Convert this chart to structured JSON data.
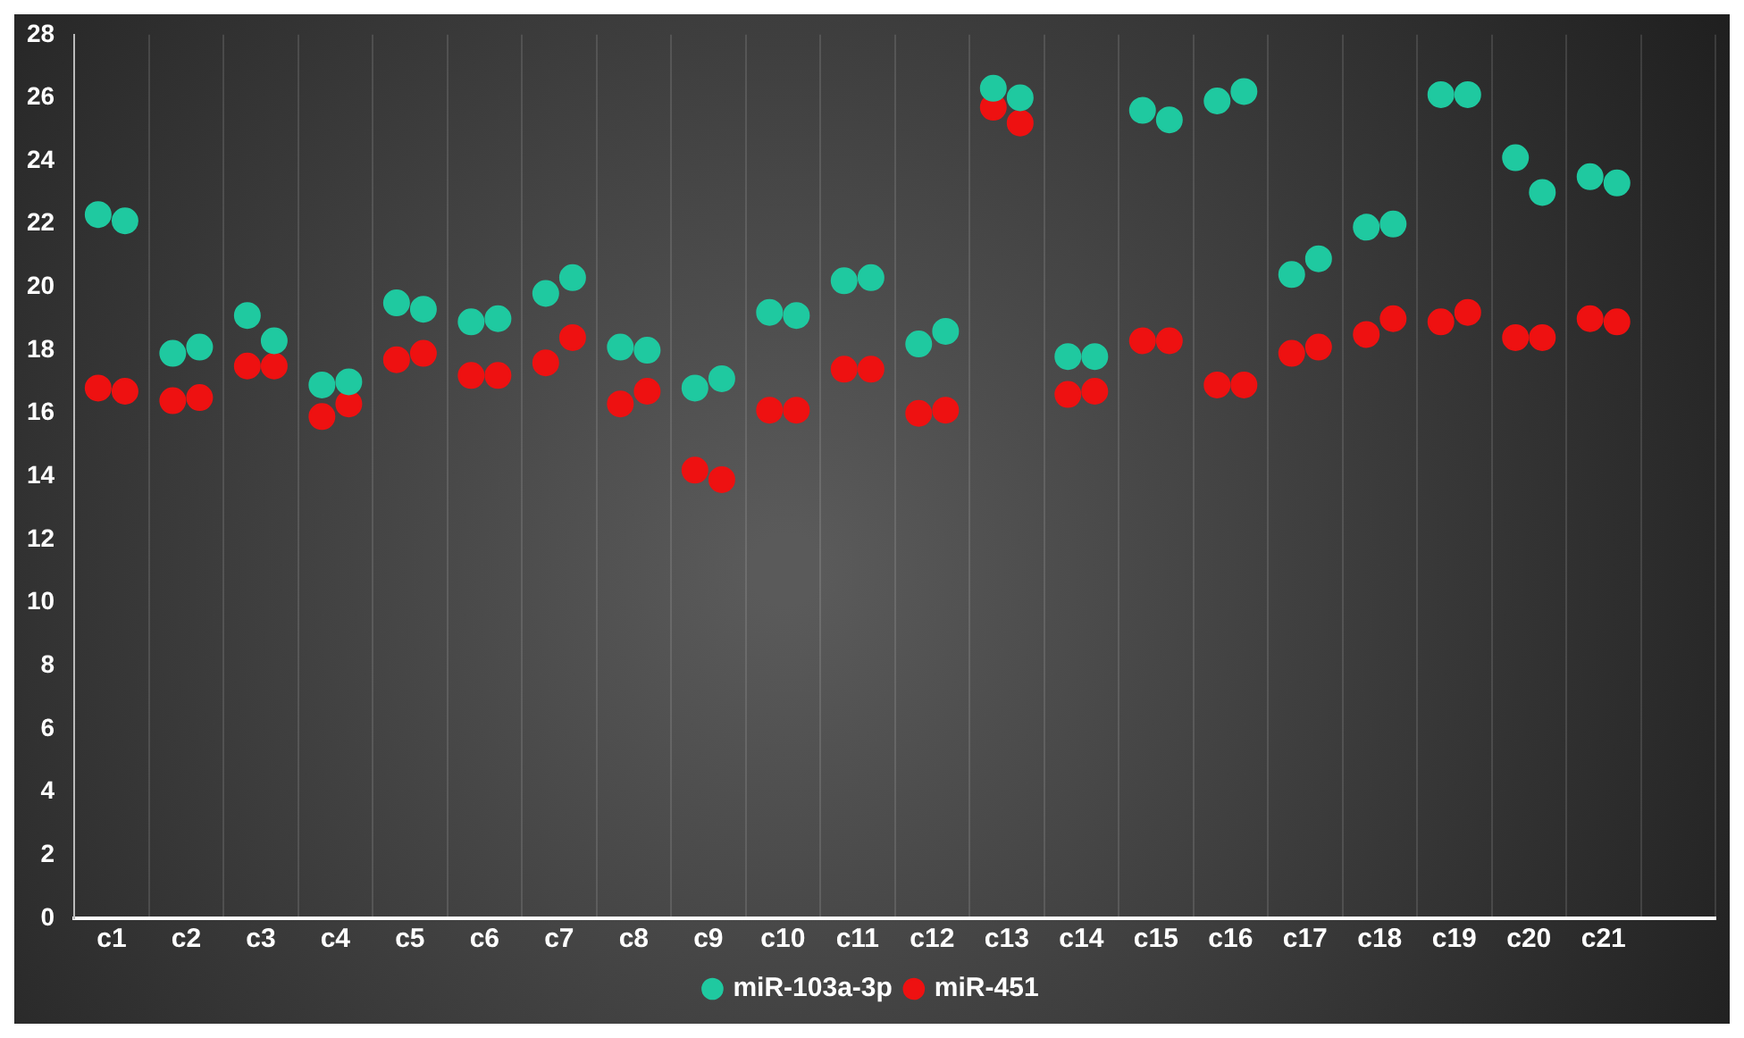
{
  "chart_data": {
    "type": "scatter",
    "categories": [
      "c1",
      "c2",
      "c3",
      "c4",
      "c5",
      "c6",
      "c7",
      "c8",
      "c9",
      "c10",
      "c11",
      "c12",
      "c13",
      "c14",
      "c15",
      "c16",
      "c17",
      "c18",
      "c19",
      "c20",
      "c21",
      null
    ],
    "ylim": [
      0,
      28
    ],
    "yticks": [
      0,
      2,
      4,
      6,
      8,
      10,
      12,
      14,
      16,
      18,
      20,
      22,
      24,
      26,
      28
    ],
    "grid": "x",
    "legend": "bottom",
    "marker": "circle",
    "series": [
      {
        "name": "miR-103a-3p",
        "color": "#1fc9a0",
        "values": [
          22.3,
          17.9,
          19.1,
          16.9,
          19.5,
          18.9,
          19.8,
          18.1,
          16.8,
          19.2,
          20.2,
          18.2,
          26.3,
          17.8,
          25.6,
          25.9,
          20.4,
          21.9,
          26.1,
          24.1,
          23.5,
          null
        ]
      },
      {
        "color": "#1fc9a0",
        "values": [
          22.1,
          18.1,
          18.3,
          17.0,
          19.3,
          19.0,
          20.3,
          18.0,
          17.1,
          19.1,
          20.3,
          18.6,
          26.0,
          17.8,
          25.3,
          26.2,
          20.9,
          22.0,
          26.1,
          23.0,
          23.3,
          null
        ]
      },
      {
        "name": "miR-451",
        "color": "#ee1111",
        "values": [
          16.8,
          16.4,
          17.5,
          15.9,
          17.7,
          17.2,
          17.6,
          16.3,
          14.2,
          16.1,
          17.4,
          16.0,
          25.7,
          16.6,
          18.3,
          16.9,
          17.9,
          18.5,
          18.9,
          18.4,
          19.0,
          null
        ]
      },
      {
        "color": "#ee1111",
        "values": [
          16.7,
          16.5,
          17.5,
          16.3,
          17.9,
          17.2,
          18.4,
          16.7,
          13.9,
          16.1,
          17.4,
          16.1,
          25.2,
          16.7,
          18.3,
          16.9,
          18.1,
          19.0,
          19.2,
          18.4,
          18.9,
          null
        ]
      }
    ]
  }
}
